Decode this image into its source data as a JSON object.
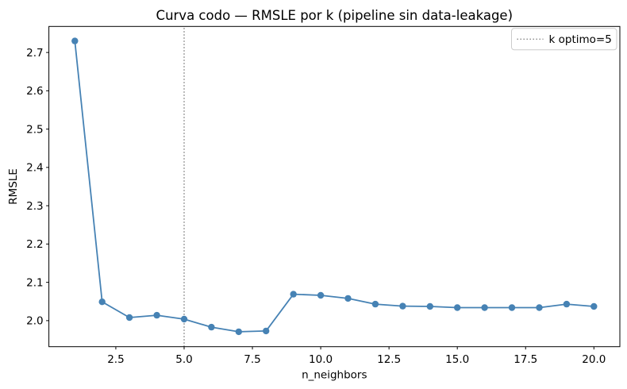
{
  "chart_data": {
    "type": "line",
    "title": "Curva codo — RMSLE por k (pipeline sin data-leakage)",
    "xlabel": "n_neighbors",
    "ylabel": "RMSLE",
    "x": [
      1,
      2,
      3,
      4,
      5,
      6,
      7,
      8,
      9,
      10,
      11,
      12,
      13,
      14,
      15,
      16,
      17,
      18,
      19,
      20
    ],
    "series": [
      {
        "name": "RMSLE",
        "values": [
          2.73,
          2.049,
          2.008,
          2.014,
          2.004,
          1.983,
          1.971,
          1.973,
          2.069,
          2.066,
          2.058,
          2.043,
          2.038,
          2.037,
          2.034,
          2.034,
          2.034,
          2.034,
          2.043,
          2.037
        ]
      }
    ],
    "xlim": [
      0.05,
      20.95
    ],
    "ylim": [
      1.932,
      2.768
    ],
    "xticks": {
      "values": [
        2.5,
        5,
        7.5,
        10,
        12.5,
        15,
        17.5,
        20
      ],
      "labels": [
        "2.5",
        "5.0",
        "7.5",
        "10.0",
        "12.5",
        "15.0",
        "17.5",
        "20.0"
      ]
    },
    "yticks": {
      "values": [
        2.0,
        2.1,
        2.2,
        2.3,
        2.4,
        2.5,
        2.6,
        2.7
      ],
      "labels": [
        "2.0",
        "2.1",
        "2.2",
        "2.3",
        "2.4",
        "2.5",
        "2.6",
        "2.7"
      ]
    },
    "vline": {
      "x": 5,
      "style": "dotted",
      "color": "#7f7f7f"
    },
    "legend": {
      "position": "upper right",
      "entries": [
        {
          "label": "k optimo=5",
          "line_style": "dotted",
          "line_color": "#7f7f7f"
        }
      ]
    },
    "grid": false,
    "colors": {
      "series": "#4682b4",
      "axes": "#000000",
      "background": "#ffffff",
      "legend_border": "#cccccc"
    }
  }
}
